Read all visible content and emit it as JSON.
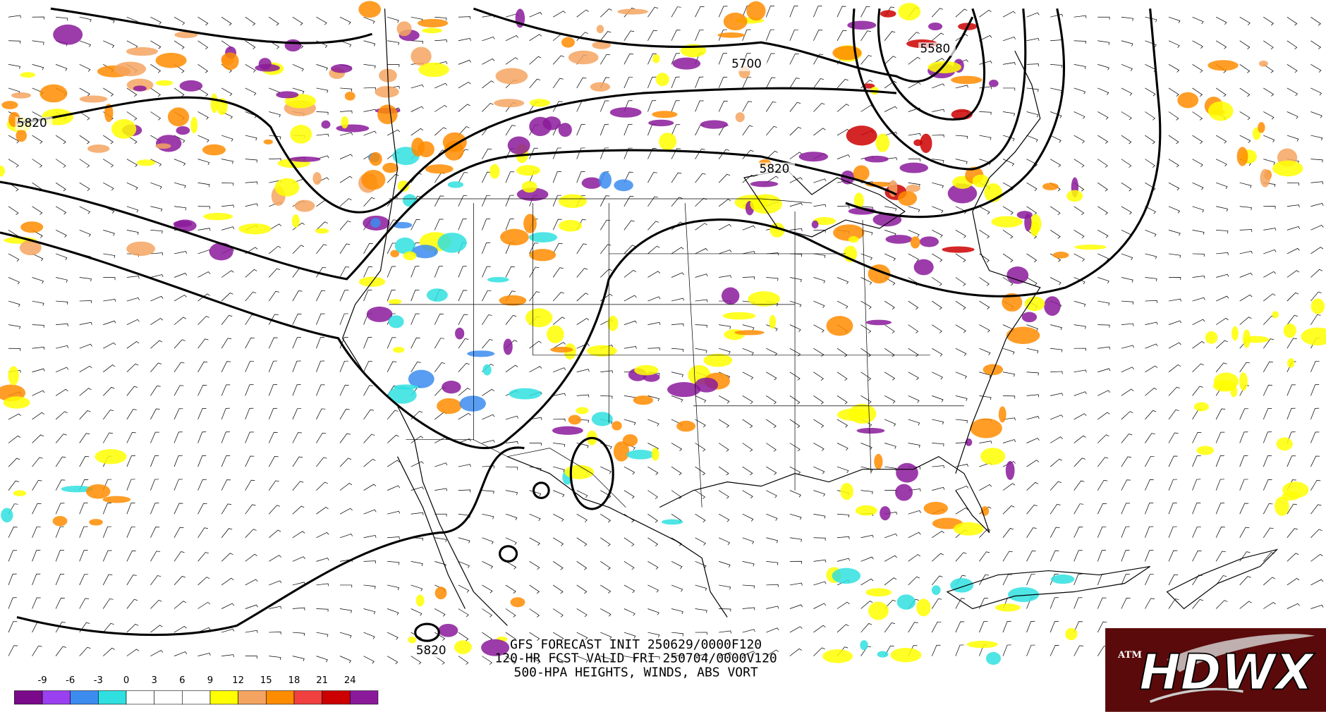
{
  "map": {
    "title_lines": [
      "GFS FORECAST INIT 250629/0000F120",
      "120-HR FCST VALID FRI 250704/0000V120",
      "500-HPA HEIGHTS, WINDS, ABS VORT"
    ],
    "contour_labels": [
      "5820",
      "5700",
      "5580",
      "5820",
      "5820"
    ],
    "colorbar": {
      "ticks": [
        -9,
        -6,
        -3,
        0,
        3,
        6,
        9,
        12,
        15,
        18,
        21,
        24
      ],
      "colors": [
        "#7a0a8a",
        "#9a40f0",
        "#3c8cf0",
        "#30e0e0",
        "#ffffff",
        "#ffffff",
        "#ffffff",
        "#ffff00",
        "#f4a460",
        "#ff8c00",
        "#f04040",
        "#cc0000",
        "#8b1a9b"
      ]
    }
  },
  "logo": {
    "text": "HDWX",
    "emblem": "ATM"
  }
}
